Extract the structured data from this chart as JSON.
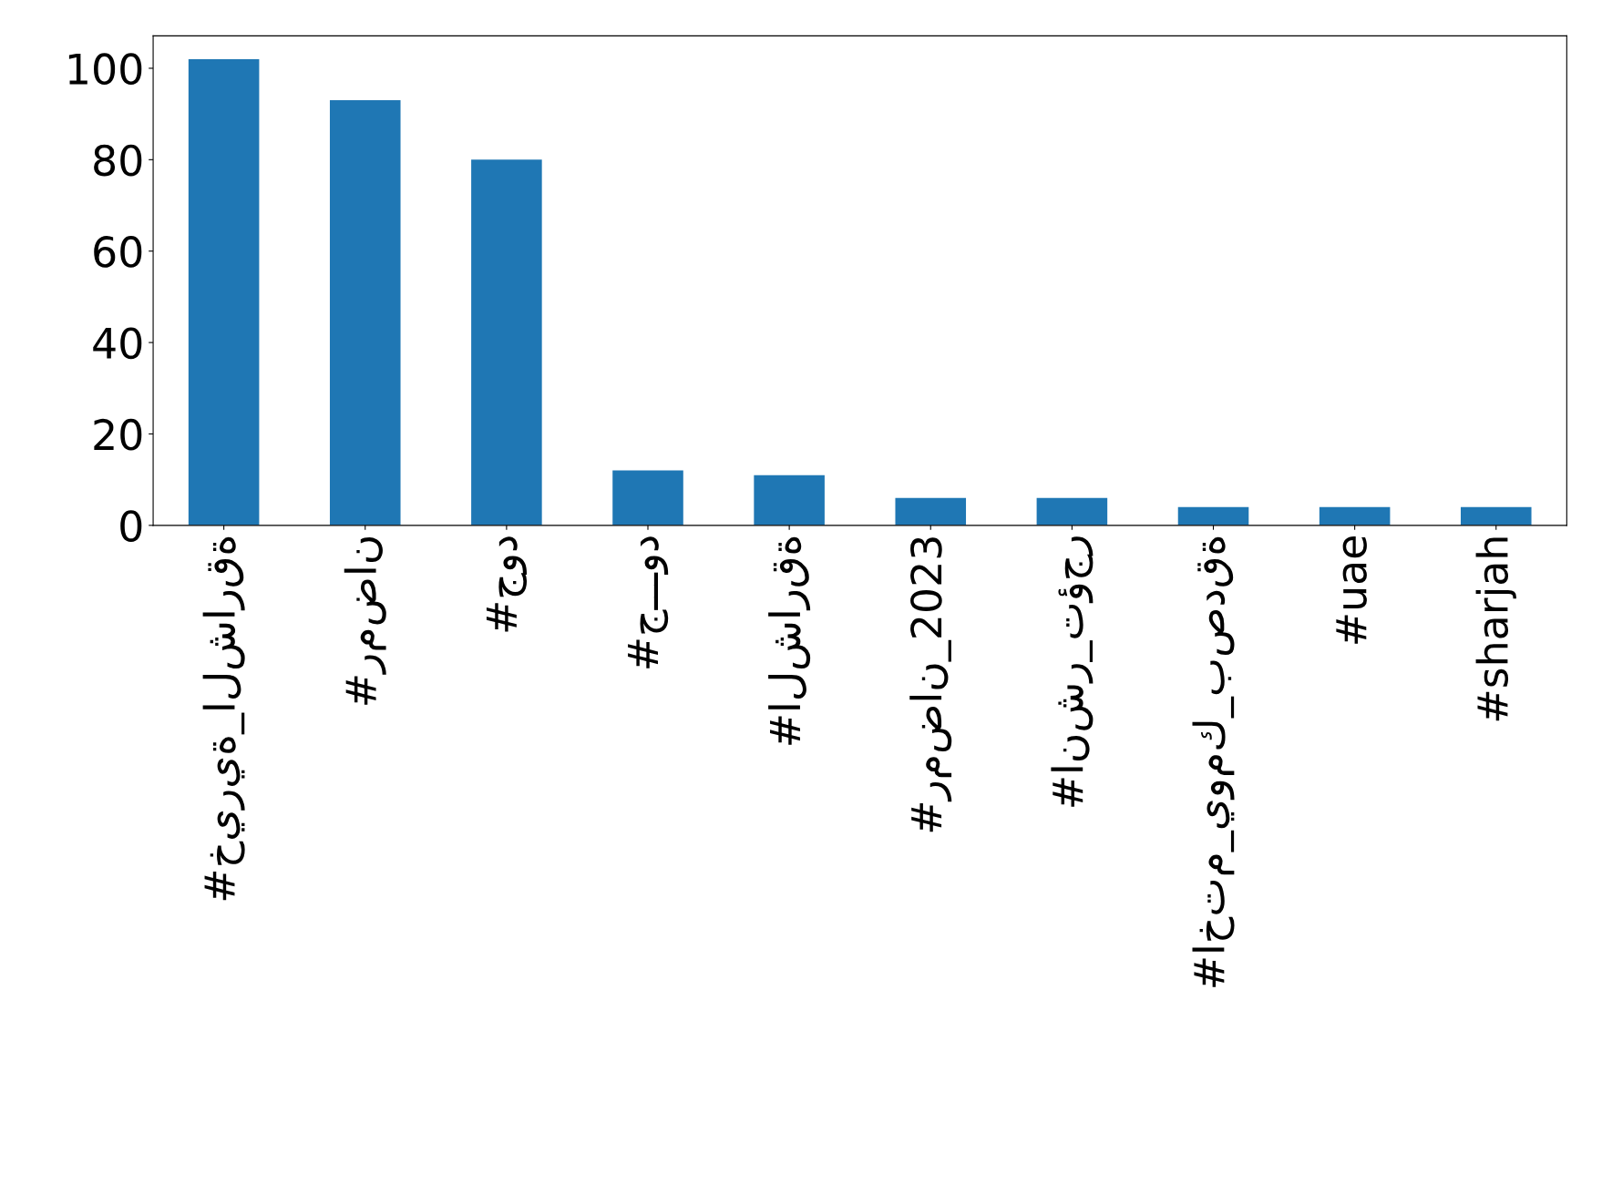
{
  "chart_data": {
    "type": "bar",
    "categories": [
      "#خيرية_الشارقة",
      "#رمضان",
      "#جود",
      "#جـــود",
      "#الشارقة",
      "#رمضان_2023",
      "#انشر_تؤجر",
      "#اختم_يومك_بصدقة",
      "#uae",
      "#sharjah"
    ],
    "values": [
      102,
      93,
      80,
      12,
      11,
      6,
      6,
      4,
      4,
      4
    ],
    "color": "#1f77b4",
    "ylim": [
      0,
      107.1
    ],
    "yticks": [
      0,
      20,
      40,
      60,
      80,
      100
    ],
    "grid": false,
    "legend": false
  }
}
